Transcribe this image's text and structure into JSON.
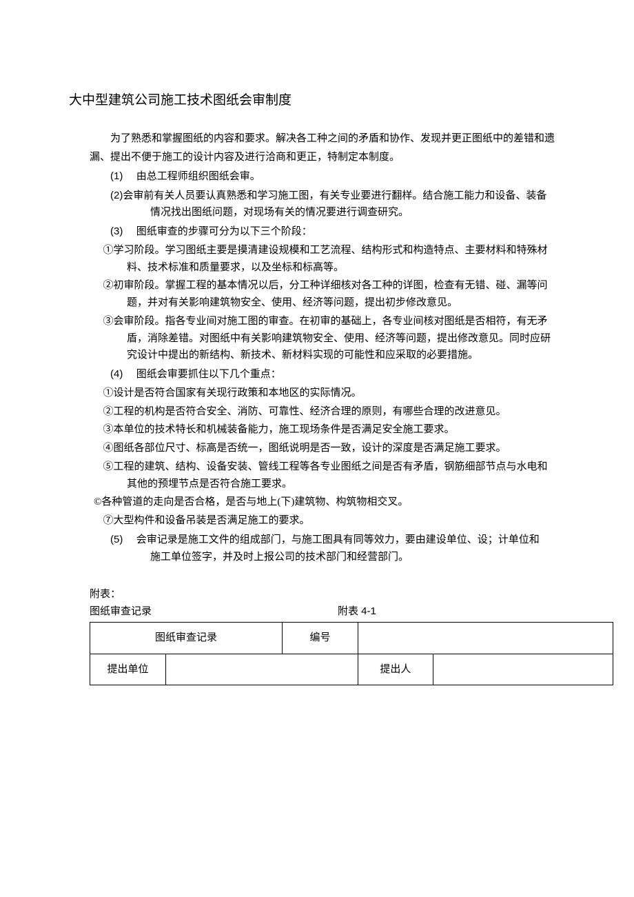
{
  "title": "大中型建筑公司施工技术图纸会审制度",
  "intro_line1": "为了熟悉和掌握图纸的内容和要求。解决各工种之间的矛盾和协作、发现并更正图纸中的差错和遗",
  "intro_line2": "漏、提出不便于施工的设计内容及进行洽商和更正，特制定本制度。",
  "items": {
    "n1_label": "(1)",
    "n1_text": "由总工程师组织图纸会审。",
    "n2_label": "(2)",
    "n2_text": "会审前有关人员要认真熟悉和学习施工图，有关专业要进行翻样。结合施工能力和设备、装备",
    "n2_cont": "情况找出图纸问题，对现场有关的情况要进行调查研究。",
    "n3_label": "(3)",
    "n3_text": "图纸审查的步骤可分为以下三个阶段：",
    "c1_line1": "①学习阶段。学习图纸主要是摸清建设规模和工艺流程、结构形式和构造特点、主要材料和特殊材",
    "c1_line2": "料、技术标准和质量要求，以及坐标和标高等。",
    "c2_line1": "②初审阶段。掌握工程的基本情况以后，分工种详细核对各工种的详图，检查有无错、碰、漏等问",
    "c2_line2": "题，并对有关影响建筑物安全、使用、经济等问题，提出初步修改意见。",
    "c3_line1": "③会审阶段。指各专业间对施工图的审查。在初审的基础上，各专业间核对图纸是否相符，有无矛",
    "c3_line2": "盾，消除差错。对图纸中有关影响建筑物安全、使用、经济等问题，提出修改意见。同时应研",
    "c3_line3": "究设计中提出的新结构、新技术、新材料实现的可能性和应采取的必要措施。",
    "n4_label": "(4)",
    "n4_text": "图纸会审要抓住以下几个重点：",
    "p1": "①设计是否符合国家有关现行政策和本地区的实际情况。",
    "p2": "②工程的机构是否符合安全、消防、可靠性、经济合理的原则，有哪些合理的改进意见。",
    "p3": "③本单位的技术特长和机械装备能力，施工现场条件是否满足安全施工要求。",
    "p4": "④图纸各部位尺寸、标高是否统一，图纸说明是否一致，设计的深度是否满足施工要求。",
    "p5_line1": "⑤工程的建筑、结构、设备安装、管线工程等各专业图纸之间是否有矛盾，钢筋细部节点与水电和",
    "p5_line2": "其他的预埋节点是否符合施工要求。",
    "p6": "©各种管道的走向是否合格，是否与地上(下)建筑物、构筑物相交叉。",
    "p7": "⑦大型构件和设备吊装是否满足施工的要求。",
    "n5_label": "(5)",
    "n5_line1": "会审记录是施工文件的组成部门，与施工图具有同等效力，要由建设单位、设；计单位和",
    "n5_line2": "施工单位签字，并及时上报公司的技术部门和经营部门。"
  },
  "attachment": {
    "label": "附表：",
    "title_left": "图纸审查记录",
    "title_right": "附表 4-1"
  },
  "table": {
    "cell_record_title": "图纸审查记录",
    "cell_number_label": "编号",
    "cell_number_value": "",
    "cell_unit_label": "提出单位",
    "cell_unit_value": "",
    "cell_person_label": "提出人",
    "cell_person_value": ""
  },
  "colors": {
    "text": "#000000",
    "background": "#ffffff",
    "border": "#000000"
  },
  "typography": {
    "body_font": "SimSun",
    "title_fontsize": 19,
    "body_fontsize": 15,
    "line_height": 1.65
  }
}
